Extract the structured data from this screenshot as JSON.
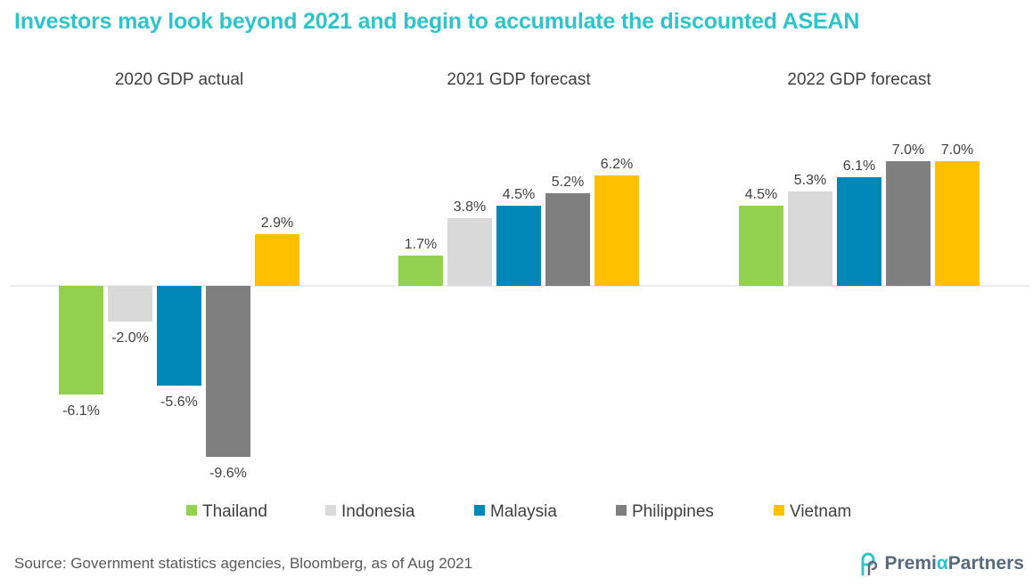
{
  "title": "Investors may look beyond 2021 and begin to accumulate the discounted ASEAN",
  "source": "Source: Government statistics agencies, Bloomberg,  as of Aug 2021",
  "brand": {
    "prefix": "Premi",
    "alpha": "α",
    "suffix": "Partners",
    "color": "#2EC4C9"
  },
  "chart_data": {
    "type": "bar",
    "categories": [
      "2020 GDP actual",
      "2021 GDP forecast",
      "2022 GDP forecast"
    ],
    "series": [
      {
        "name": "Thailand",
        "values": [
          -6.1,
          1.7,
          4.5
        ],
        "labels": [
          "-6.1%",
          "1.7%",
          "4.5%"
        ],
        "color": "#92D050"
      },
      {
        "name": "Indonesia",
        "values": [
          -2.0,
          3.8,
          5.3
        ],
        "labels": [
          "-2.0%",
          "3.8%",
          "5.3%"
        ],
        "color": "#D9D9D9"
      },
      {
        "name": "Malaysia",
        "values": [
          -5.6,
          4.5,
          6.1
        ],
        "labels": [
          "-5.6%",
          "4.5%",
          "6.1%"
        ],
        "color": "#0087B8"
      },
      {
        "name": "Philippines",
        "values": [
          -9.6,
          5.2,
          7.0
        ],
        "labels": [
          "-9.6%",
          "5.2%",
          "7.0%"
        ],
        "color": "#7F7F7F"
      },
      {
        "name": "Vietnam",
        "values": [
          2.9,
          6.2,
          7.0
        ],
        "labels": [
          "2.9%",
          "6.2%",
          "7.0%"
        ],
        "color": "#FFC000"
      }
    ],
    "unit": "%",
    "ylim": [
      -9.6,
      7.0
    ],
    "grid": false,
    "legend_position": "bottom"
  }
}
